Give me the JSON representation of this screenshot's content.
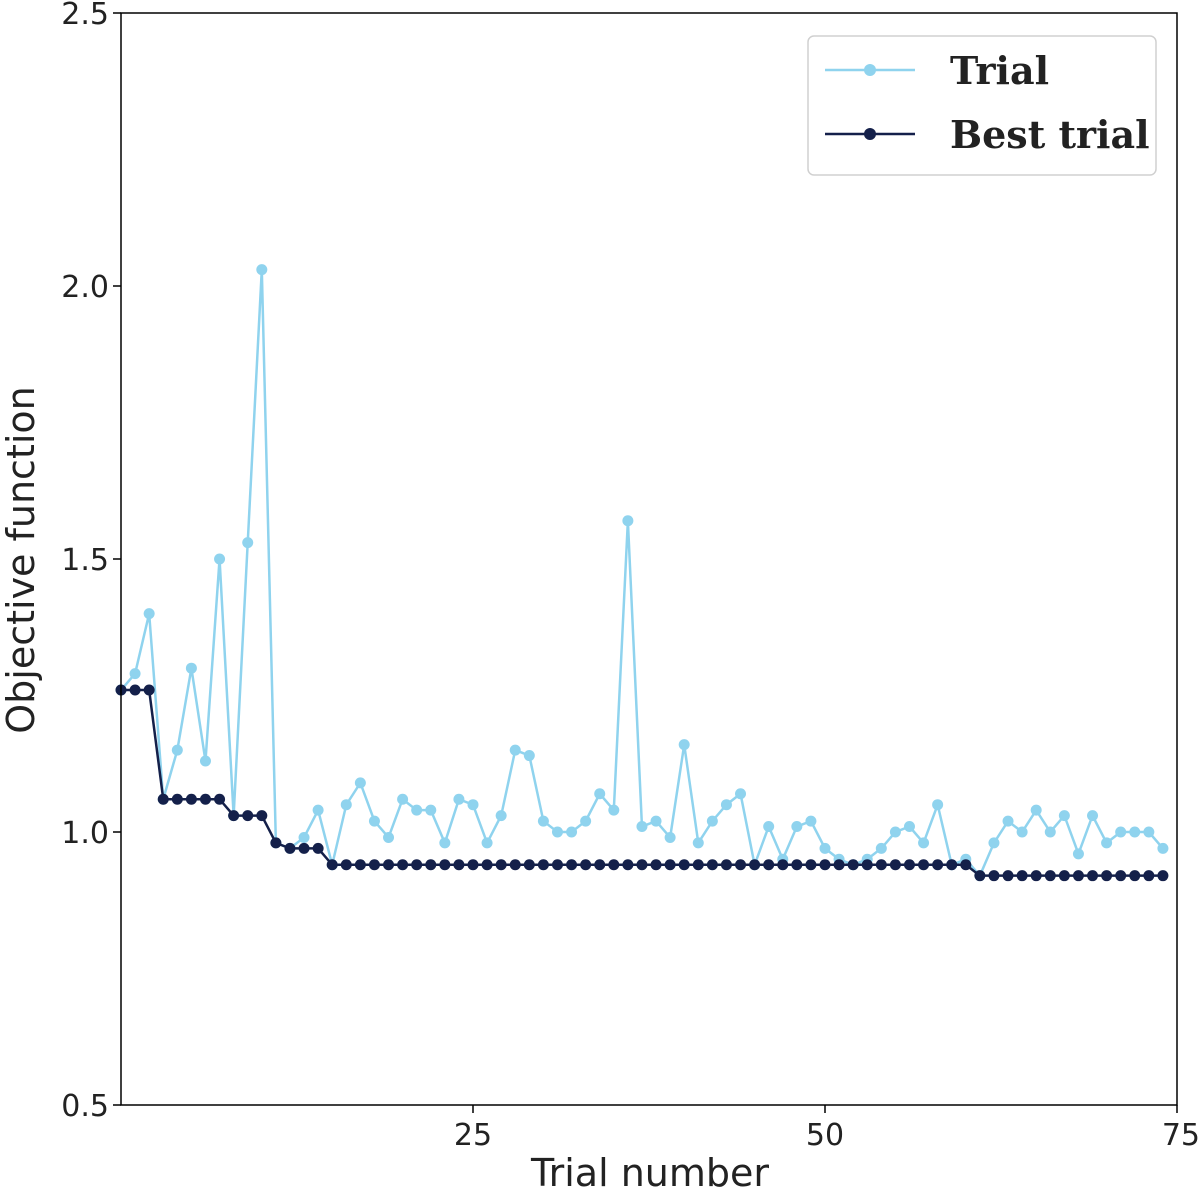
{
  "chart_data": {
    "type": "line",
    "xlabel": "Trial number",
    "ylabel": "Objective function",
    "xlim": [
      0,
      75
    ],
    "ylim": [
      0.5,
      2.5
    ],
    "xticks": [
      25,
      50,
      75
    ],
    "yticks": [
      0.5,
      1.0,
      1.5,
      2.0,
      2.5
    ],
    "xtick_labels": [
      "25",
      "50",
      "75"
    ],
    "ytick_labels": [
      "0.5",
      "1.0",
      "1.5",
      "2.0",
      "2.5"
    ],
    "grid": false,
    "legend_position": "top-right",
    "series": [
      {
        "name": "Trial",
        "color": "#8fd3ee",
        "x": [
          0,
          1,
          2,
          3,
          4,
          5,
          6,
          7,
          8,
          9,
          10,
          11,
          12,
          13,
          14,
          15,
          16,
          17,
          18,
          19,
          20,
          21,
          22,
          23,
          24,
          25,
          26,
          27,
          28,
          29,
          30,
          31,
          32,
          33,
          34,
          35,
          36,
          37,
          38,
          39,
          40,
          41,
          42,
          43,
          44,
          45,
          46,
          47,
          48,
          49,
          50,
          51,
          52,
          53,
          54,
          55,
          56,
          57,
          58,
          59,
          60,
          61,
          62,
          63,
          64,
          65,
          66,
          67,
          68,
          69,
          70,
          71,
          72,
          73,
          74
        ],
        "values": [
          1.26,
          1.29,
          1.4,
          1.06,
          1.15,
          1.3,
          1.13,
          1.5,
          1.03,
          1.53,
          2.03,
          0.98,
          0.97,
          0.99,
          1.04,
          0.94,
          1.05,
          1.09,
          1.02,
          0.99,
          1.06,
          1.04,
          1.04,
          0.98,
          1.06,
          1.05,
          0.98,
          1.03,
          1.15,
          1.14,
          1.02,
          1.0,
          1.0,
          1.02,
          1.07,
          1.04,
          1.57,
          1.01,
          1.02,
          0.99,
          1.16,
          0.98,
          1.02,
          1.05,
          1.07,
          0.94,
          1.01,
          0.95,
          1.01,
          1.02,
          0.97,
          0.95,
          0.94,
          0.95,
          0.97,
          1.0,
          1.01,
          0.98,
          1.05,
          0.94,
          0.95,
          0.92,
          0.98,
          1.02,
          1.0,
          1.04,
          1.0,
          1.03,
          0.96,
          1.03,
          0.98,
          1.0,
          1.0,
          1.0,
          0.97
        ]
      },
      {
        "name": "Best trial",
        "color": "#14204a",
        "x": [
          0,
          1,
          2,
          3,
          4,
          5,
          6,
          7,
          8,
          9,
          10,
          11,
          12,
          13,
          14,
          15,
          16,
          17,
          18,
          19,
          20,
          21,
          22,
          23,
          24,
          25,
          26,
          27,
          28,
          29,
          30,
          31,
          32,
          33,
          34,
          35,
          36,
          37,
          38,
          39,
          40,
          41,
          42,
          43,
          44,
          45,
          46,
          47,
          48,
          49,
          50,
          51,
          52,
          53,
          54,
          55,
          56,
          57,
          58,
          59,
          60,
          61,
          62,
          63,
          64,
          65,
          66,
          67,
          68,
          69,
          70,
          71,
          72,
          73,
          74
        ],
        "values": [
          1.26,
          1.26,
          1.26,
          1.06,
          1.06,
          1.06,
          1.06,
          1.06,
          1.03,
          1.03,
          1.03,
          0.98,
          0.97,
          0.97,
          0.97,
          0.94,
          0.94,
          0.94,
          0.94,
          0.94,
          0.94,
          0.94,
          0.94,
          0.94,
          0.94,
          0.94,
          0.94,
          0.94,
          0.94,
          0.94,
          0.94,
          0.94,
          0.94,
          0.94,
          0.94,
          0.94,
          0.94,
          0.94,
          0.94,
          0.94,
          0.94,
          0.94,
          0.94,
          0.94,
          0.94,
          0.94,
          0.94,
          0.94,
          0.94,
          0.94,
          0.94,
          0.94,
          0.94,
          0.94,
          0.94,
          0.94,
          0.94,
          0.94,
          0.94,
          0.94,
          0.94,
          0.92,
          0.92,
          0.92,
          0.92,
          0.92,
          0.92,
          0.92,
          0.92,
          0.92,
          0.92,
          0.92,
          0.92,
          0.92,
          0.92
        ]
      }
    ]
  }
}
